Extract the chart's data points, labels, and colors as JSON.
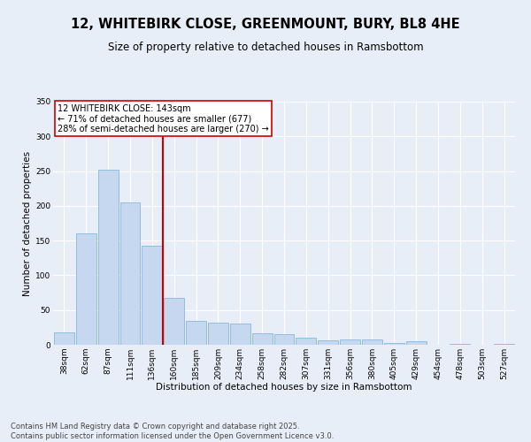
{
  "title_line1": "12, WHITEBIRK CLOSE, GREENMOUNT, BURY, BL8 4HE",
  "title_line2": "Size of property relative to detached houses in Ramsbottom",
  "xlabel": "Distribution of detached houses by size in Ramsbottom",
  "ylabel": "Number of detached properties",
  "bar_values": [
    18,
    160,
    252,
    205,
    143,
    68,
    35,
    32,
    30,
    16,
    15,
    10,
    7,
    8,
    8,
    3,
    5,
    0,
    1,
    0,
    1
  ],
  "categories": [
    "38sqm",
    "62sqm",
    "87sqm",
    "111sqm",
    "136sqm",
    "160sqm",
    "185sqm",
    "209sqm",
    "234sqm",
    "258sqm",
    "282sqm",
    "307sqm",
    "331sqm",
    "356sqm",
    "380sqm",
    "405sqm",
    "429sqm",
    "454sqm",
    "478sqm",
    "503sqm",
    "527sqm"
  ],
  "bar_color": "#c5d8f0",
  "bar_edge_color": "#7aadd4",
  "vline_color": "#cc0000",
  "annotation_text": "12 WHITEBIRK CLOSE: 143sqm\n← 71% of detached houses are smaller (677)\n28% of semi-detached houses are larger (270) →",
  "annotation_box_color": "#ffffff",
  "annotation_box_edge": "#cc0000",
  "ylim": [
    0,
    350
  ],
  "yticks": [
    0,
    50,
    100,
    150,
    200,
    250,
    300,
    350
  ],
  "background_color": "#e8eef8",
  "plot_bg_color": "#e8eef8",
  "footer_line1": "Contains HM Land Registry data © Crown copyright and database right 2025.",
  "footer_line2": "Contains public sector information licensed under the Open Government Licence v3.0.",
  "title_fontsize": 10.5,
  "subtitle_fontsize": 8.5,
  "axis_label_fontsize": 7.5,
  "tick_fontsize": 6.5,
  "annotation_fontsize": 7,
  "footer_fontsize": 6
}
